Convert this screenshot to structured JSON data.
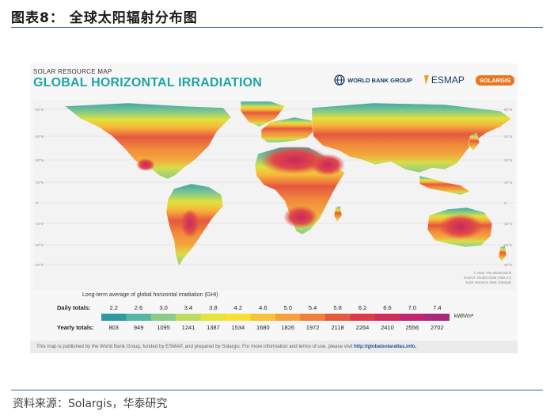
{
  "figure": {
    "title": "图表8： 全球太阳辐射分布图",
    "source": "资料来源：Solargis，华泰研究"
  },
  "map": {
    "supertitle": "SOLAR RESOURCE MAP",
    "title": "GLOBAL HORIZONTAL IRRADIATION",
    "logos": {
      "worldbank": "WORLD BANK GROUP",
      "esmap": "ESMAP",
      "solargis": "SOLARGIS"
    },
    "lat_labels": [
      "60°N",
      "45°N",
      "30°N",
      "15°N",
      "0°",
      "15°S",
      "30°S",
      "45°S"
    ],
    "copyright": [
      "© 2024 The World Bank",
      "Source: Global Solar Atlas 2.0",
      "Solar resource data: Solargis"
    ],
    "legend": {
      "title": "Long-term average of global horizontal irradiation (GHI)",
      "daily_label": "Daily totals:",
      "yearly_label": "Yearly totals:",
      "daily": [
        "2.2",
        "2.6",
        "3.0",
        "3.4",
        "3.8",
        "4.2",
        "4.6",
        "5.0",
        "5.4",
        "5.8",
        "6.2",
        "6.6",
        "7.0",
        "7.4"
      ],
      "yearly": [
        "803",
        "949",
        "1095",
        "1241",
        "1387",
        "1534",
        "1680",
        "1826",
        "1972",
        "2118",
        "2264",
        "2410",
        "2556",
        "2702"
      ],
      "unit": "kWh/m²",
      "colors": [
        "#2f9aa0",
        "#57b7a3",
        "#8ccc8a",
        "#bedd5e",
        "#e6e43a",
        "#fce031",
        "#f8c23a",
        "#f5a23c",
        "#f07e3c",
        "#e6583f",
        "#dc3c4a",
        "#d02c5c",
        "#bf266e",
        "#a82a7c"
      ]
    },
    "footnote": "This map is published by the World Bank Group, funded by ESMAP, and prepared by Solargis. For more information and terms of use, please visit ",
    "footnote_link": "http://globalsolaratlas.info."
  }
}
